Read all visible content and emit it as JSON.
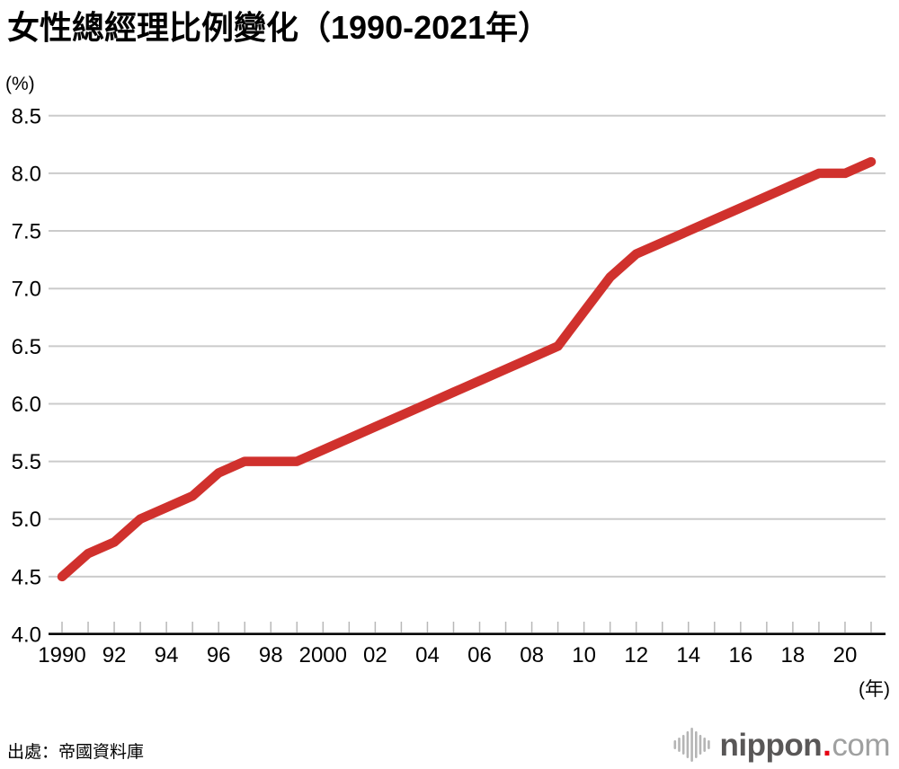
{
  "chart_data": {
    "type": "line",
    "title": "女性總經理比例變化（1990-2021年）",
    "y_unit_label": "(%)",
    "x_unit_label": "(年)",
    "ylabel": "",
    "xlabel": "",
    "ylim": [
      4.0,
      8.5
    ],
    "xlim": [
      1990,
      2021
    ],
    "grid": "horizontal",
    "legend": "none",
    "line_color": "#d0312d",
    "x": [
      1990,
      1991,
      1992,
      1993,
      1994,
      1995,
      1996,
      1997,
      1998,
      1999,
      2000,
      2001,
      2002,
      2003,
      2004,
      2005,
      2006,
      2007,
      2008,
      2009,
      2010,
      2011,
      2012,
      2013,
      2014,
      2015,
      2016,
      2017,
      2018,
      2019,
      2020,
      2021
    ],
    "series": [
      {
        "name": "女性總經理比例",
        "values": [
          4.5,
          4.7,
          4.8,
          5.0,
          5.1,
          5.2,
          5.4,
          5.5,
          5.5,
          5.5,
          5.6,
          5.7,
          5.8,
          5.9,
          6.0,
          6.1,
          6.2,
          6.3,
          6.4,
          6.5,
          6.8,
          7.1,
          7.3,
          7.4,
          7.5,
          7.6,
          7.7,
          7.8,
          7.9,
          8.0,
          8.0,
          8.1
        ]
      }
    ],
    "y_ticks": [
      4.0,
      4.5,
      5.0,
      5.5,
      6.0,
      6.5,
      7.0,
      7.5,
      8.0,
      8.5
    ],
    "y_tick_labels": [
      "4.0",
      "4.5",
      "5.0",
      "5.5",
      "6.0",
      "6.5",
      "7.0",
      "7.5",
      "8.0",
      "8.5"
    ],
    "x_tick_labels": [
      {
        "year": 1990,
        "label": "1990"
      },
      {
        "year": 1992,
        "label": "92"
      },
      {
        "year": 1994,
        "label": "94"
      },
      {
        "year": 1996,
        "label": "96"
      },
      {
        "year": 1998,
        "label": "98"
      },
      {
        "year": 2000,
        "label": "2000"
      },
      {
        "year": 2002,
        "label": "02"
      },
      {
        "year": 2004,
        "label": "04"
      },
      {
        "year": 2006,
        "label": "06"
      },
      {
        "year": 2008,
        "label": "08"
      },
      {
        "year": 2010,
        "label": "10"
      },
      {
        "year": 2012,
        "label": "12"
      },
      {
        "year": 2014,
        "label": "14"
      },
      {
        "year": 2016,
        "label": "16"
      },
      {
        "year": 2018,
        "label": "18"
      },
      {
        "year": 2020,
        "label": "20"
      }
    ]
  },
  "footer": {
    "source": "出處：帝國資料庫"
  },
  "logo": {
    "name": "nippon",
    "separator": ".",
    "domain": "com",
    "name_color": "#595757",
    "domain_color": "#9fa0a0",
    "dot_color": "#e60012",
    "bars_color": "#b5b5b5"
  }
}
